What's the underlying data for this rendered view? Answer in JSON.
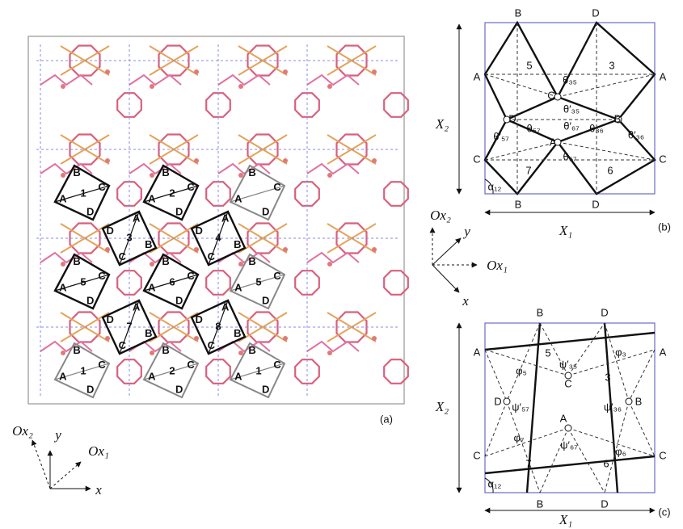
{
  "panel_a": {
    "panel_label": "(a)",
    "squares": [
      {
        "number": "1",
        "corners": [
          "A",
          "B",
          "C",
          "D"
        ]
      },
      {
        "number": "2",
        "corners": [
          "A",
          "B",
          "C",
          "D"
        ]
      },
      {
        "number": "3",
        "corners": [
          "A",
          "B",
          "C",
          "D"
        ]
      },
      {
        "number": "4",
        "corners": [
          "A",
          "B",
          "C",
          "D"
        ]
      },
      {
        "number": "5",
        "corners": [
          "A",
          "B",
          "C",
          "D"
        ]
      },
      {
        "number": "6",
        "corners": [
          "A",
          "B",
          "C",
          "D"
        ]
      },
      {
        "number": "7",
        "corners": [
          "A",
          "B",
          "C",
          "D"
        ]
      },
      {
        "number": "8",
        "corners": [
          "A",
          "B",
          "C",
          "D"
        ]
      }
    ],
    "gray_squares": [
      {
        "corners": [
          "A",
          "B",
          "C",
          "D"
        ]
      },
      {
        "number": "5",
        "corners": [
          "A",
          "B",
          "C",
          "D"
        ]
      },
      {
        "number": "1",
        "corners": [
          "A",
          "B",
          "C",
          "D"
        ]
      },
      {
        "number": "2",
        "corners": [
          "A",
          "B",
          "C",
          "D"
        ]
      },
      {
        "number": "1",
        "corners": [
          "A",
          "B",
          "C",
          "D"
        ]
      }
    ]
  },
  "axes_a": {
    "ox2": "Ox₂",
    "ox1": "Ox₁",
    "y": "y",
    "x": "x"
  },
  "axes_mid": {
    "ox2": "Ox₂",
    "y": "y",
    "ox1": "Ox₁",
    "x": "x"
  },
  "panel_b": {
    "texts": [
      "B",
      "D",
      "A",
      "A",
      "5",
      "3",
      "C",
      "θ₃₅",
      "θ′₃₅",
      "D",
      "B",
      "θ′₅₇",
      "θ₅₇",
      "θ₃₆",
      "θ′₃₆",
      "θ′₆₇",
      "A",
      "7",
      "6",
      "θ₆₇",
      "C",
      "C",
      "α₁₂",
      "B",
      "D",
      "X₂",
      "X₁",
      "(b)"
    ]
  },
  "panel_c": {
    "texts": [
      "B",
      "D",
      "A",
      "A",
      "5",
      "ψ′₃₅",
      "φ₃",
      "3",
      "C",
      "φ₅",
      "D",
      "ψ′₅₇",
      "ψ′₃₆",
      "B",
      "A",
      "ψ′₆₇",
      "φ₇",
      "φ₆",
      "7",
      "6",
      "C",
      "C",
      "α₁₂",
      "B",
      "D",
      "X₂",
      "X₁",
      "(c)"
    ]
  }
}
